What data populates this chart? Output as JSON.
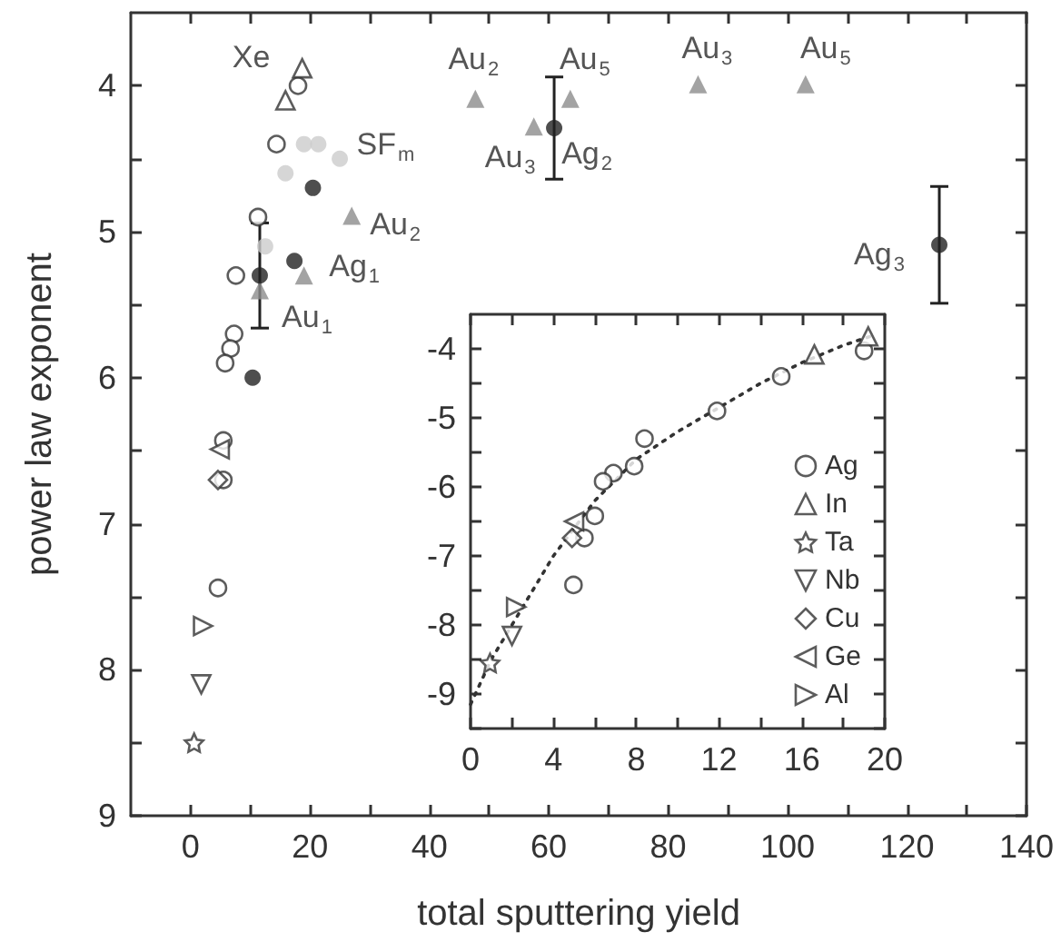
{
  "chart_data": [
    {
      "type": "scatter",
      "xlabel": "total sputtering yield",
      "ylabel": "power law exponent",
      "xlim": [
        -10,
        140
      ],
      "xticks": [
        0,
        {
          "value": 10,
          "label": null
        },
        20,
        {
          "value": 30,
          "label": null
        },
        40,
        {
          "value": 50,
          "label": null
        },
        60,
        {
          "value": 70,
          "label": null
        },
        80,
        {
          "value": 90,
          "label": null
        },
        100,
        {
          "value": 110,
          "label": null
        },
        120,
        {
          "value": 130,
          "label": null
        },
        140
      ],
      "ylim": [
        9,
        3.5
      ],
      "yticks": [
        4,
        {
          "value": 4.5,
          "label": null
        },
        5,
        {
          "value": 5.5,
          "label": null
        },
        6,
        {
          "value": 6.5,
          "label": null
        },
        7,
        {
          "value": 7.5,
          "label": null
        },
        8,
        {
          "value": 8.5,
          "label": null
        },
        9
      ],
      "grid": false,
      "legend": false,
      "series": [
        {
          "color": "#333333",
          "marker": "circle",
          "x": [
            18,
            14.4,
            11.3,
            7.6,
            7.3,
            6.7,
            5.8,
            5.5,
            5.5,
            4.6
          ],
          "values": [
            4.0,
            4.4,
            4.9,
            5.3,
            5.7,
            5.8,
            5.9,
            6.43,
            6.7,
            7.44
          ]
        },
        {
          "color": "#333333",
          "marker": "triangle",
          "x": [
            18.7,
            15.9
          ],
          "values": [
            3.88,
            4.1
          ]
        },
        {
          "color": "#333333",
          "marker": "triangle",
          "x": [
            4.9
          ],
          "values": [
            6.49
          ]
        },
        {
          "color": "#333333",
          "marker": "diamond",
          "x": [
            4.6
          ],
          "values": [
            6.7
          ]
        },
        {
          "color": "#333333",
          "marker": "triangle",
          "x": [
            2.1
          ],
          "values": [
            7.7
          ]
        },
        {
          "color": "#333333",
          "marker": "triangle",
          "x": [
            1.8
          ],
          "values": [
            8.1
          ]
        },
        {
          "color": "#333333",
          "marker": "star",
          "x": [
            0.6
          ],
          "values": [
            8.5
          ]
        },
        {
          "color": "#cccccc",
          "marker": "circle",
          "x": [
            19,
            21.4,
            25,
            15.9,
            12.5
          ],
          "values": [
            4.4,
            4.4,
            4.5,
            4.6,
            5.1
          ]
        },
        {
          "color": "#8c8c8c",
          "marker": "triangle",
          "x": [
            27,
            19,
            11.6,
            47.7,
            57.5,
            63.6,
            85,
            103
          ],
          "values": [
            4.89,
            5.3,
            5.4,
            4.09,
            4.28,
            4.09,
            3.99,
            3.99
          ]
        },
        {
          "color": "#222222",
          "marker": "circle",
          "x": [
            20.5,
            17.4,
            11.6,
            10.4,
            60.9,
            125.4
          ],
          "values": [
            4.7,
            5.2,
            5.3,
            6.0,
            4.29,
            5.09
          ],
          "errors": [
            null,
            null,
            0.36,
            null,
            0.35,
            0.4
          ]
        }
      ],
      "annotations": [
        {
          "text": "Xe",
          "x": 18.7,
          "y": 3.88
        },
        {
          "text": "SF$_{m}$",
          "x": 21.4,
          "y": 4.4
        },
        {
          "text": "Au$_{2}$",
          "x": 27,
          "y": 4.89
        },
        {
          "text": "Ag$_{1}$",
          "x": 17.4,
          "y": 5.2
        },
        {
          "text": "Au$_{1}$",
          "x": 11.6,
          "y": 5.4
        },
        {
          "text": "Au$_{2}$",
          "x": 47.7,
          "y": 4.09
        },
        {
          "text": "Au$_{3}$",
          "x": 57.5,
          "y": 4.28
        },
        {
          "text": "Ag$_{2}$",
          "x": 60.9,
          "y": 4.29
        },
        {
          "text": "Au$_{5}$",
          "x": 63.6,
          "y": 4.09
        },
        {
          "text": "Au$_{3}$",
          "x": 85,
          "y": 3.99
        },
        {
          "text": "Au$_{5}$",
          "x": 103,
          "y": 3.99
        },
        {
          "text": "Ag$_{3}$",
          "x": 125.4,
          "y": 5.09
        }
      ]
    },
    {
      "type": "scatter",
      "xlim": [
        0,
        20
      ],
      "xticks": [
        0,
        {
          "value": 2,
          "label": null
        },
        4,
        {
          "value": 6,
          "label": null
        },
        8,
        {
          "value": 10,
          "label": null
        },
        12,
        {
          "value": 14,
          "label": null
        },
        16,
        {
          "value": 18,
          "label": null
        },
        20
      ],
      "ylim": [
        -9.5,
        -3.5
      ],
      "yticks": [
        {
          "value": -9.5,
          "label": null
        },
        -9,
        {
          "value": -8.5,
          "label": null
        },
        -8,
        {
          "value": -7.5,
          "label": null
        },
        -7,
        {
          "value": -6.5,
          "label": null
        },
        -6,
        {
          "value": -5.5,
          "label": null
        },
        -5,
        {
          "value": -4.5,
          "label": null
        },
        -4
      ],
      "grid": false,
      "legend": "bottom right",
      "series": [
        {
          "name": "Ag",
          "color": "#333333",
          "marker": "circle",
          "x": [
            19.0,
            15.0,
            11.9,
            8.4,
            7.9,
            6.9,
            6.4,
            6.0,
            5.5,
            4.97
          ],
          "values": [
            -4.03,
            -4.4,
            -4.9,
            -5.3,
            -5.7,
            -5.8,
            -5.92,
            -6.42,
            -6.74,
            -7.42
          ]
        },
        {
          "name": "In",
          "color": "#333333",
          "marker": "triangle",
          "x": [
            16.6,
            19.2
          ],
          "values": [
            -4.08,
            -3.82
          ]
        },
        {
          "name": "Ta",
          "color": "#333333",
          "marker": "star",
          "x": [
            0.94
          ],
          "values": [
            -8.55
          ]
        },
        {
          "name": "Nb",
          "color": "#333333",
          "marker": "triangle",
          "x": [
            2.0
          ],
          "values": [
            -8.16
          ]
        },
        {
          "name": "Cu",
          "color": "#333333",
          "marker": "diamond",
          "x": [
            4.9
          ],
          "values": [
            -6.74
          ]
        },
        {
          "name": "Ge",
          "color": "#333333",
          "marker": "triangle",
          "x": [
            5.0
          ],
          "values": [
            -6.5
          ]
        },
        {
          "name": "Al",
          "color": "#333333",
          "marker": "triangle",
          "x": [
            2.2
          ],
          "values": [
            -7.74
          ]
        },
        {
          "type": "line",
          "color": "#333333",
          "marker": "none",
          "line_style": "dotted",
          "x": [
            0,
            1,
            2,
            3,
            4,
            5,
            6,
            8,
            10,
            12,
            14,
            16,
            18,
            19.5
          ],
          "values": [
            -9.15,
            -8.5,
            -8.0,
            -7.5,
            -7.0,
            -6.6,
            -6.2,
            -5.6,
            -5.2,
            -4.85,
            -4.5,
            -4.2,
            -3.95,
            -3.8
          ]
        }
      ]
    }
  ]
}
